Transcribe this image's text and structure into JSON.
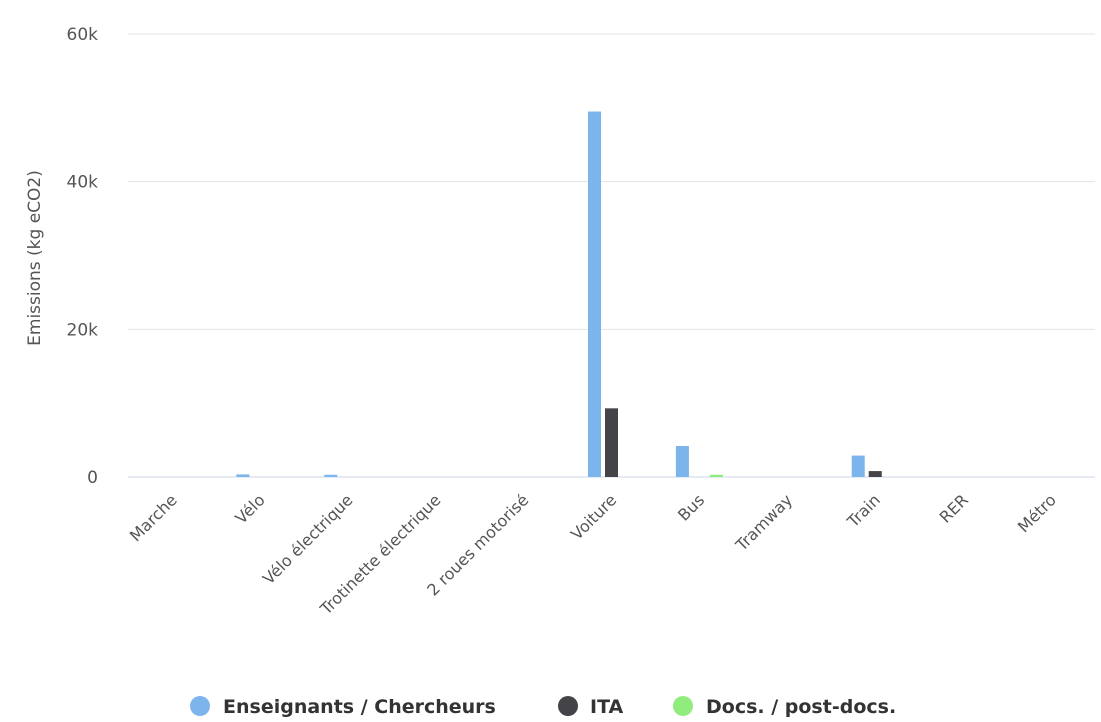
{
  "chart_data": {
    "type": "bar",
    "title": "",
    "xlabel": "",
    "ylabel": "Emissions (kg eCO2)",
    "ylim": [
      0,
      60000
    ],
    "y_ticks": [
      0,
      20000,
      40000,
      60000
    ],
    "y_tick_labels": [
      "0",
      "20k",
      "40k",
      "60k"
    ],
    "grid": true,
    "legend_position": "bottom-center",
    "categories": [
      "Marche",
      "Vélo",
      "Vélo électrique",
      "Trotinette électrique",
      "2 roues motorisé",
      "Voiture",
      "Bus",
      "Tramway",
      "Train",
      "RER",
      "Métro"
    ],
    "series": [
      {
        "name": "Enseignants / Chercheurs",
        "color": "#7cb5ec",
        "values": [
          0,
          350,
          300,
          0,
          0,
          49500,
          4200,
          0,
          2900,
          0,
          0
        ]
      },
      {
        "name": "ITA",
        "color": "#434348",
        "values": [
          0,
          0,
          0,
          0,
          0,
          9300,
          0,
          0,
          800,
          0,
          0
        ]
      },
      {
        "name": "Docs. / post-docs.",
        "color": "#90ed7d",
        "values": [
          0,
          0,
          0,
          0,
          0,
          0,
          300,
          0,
          0,
          0,
          0
        ]
      }
    ]
  }
}
